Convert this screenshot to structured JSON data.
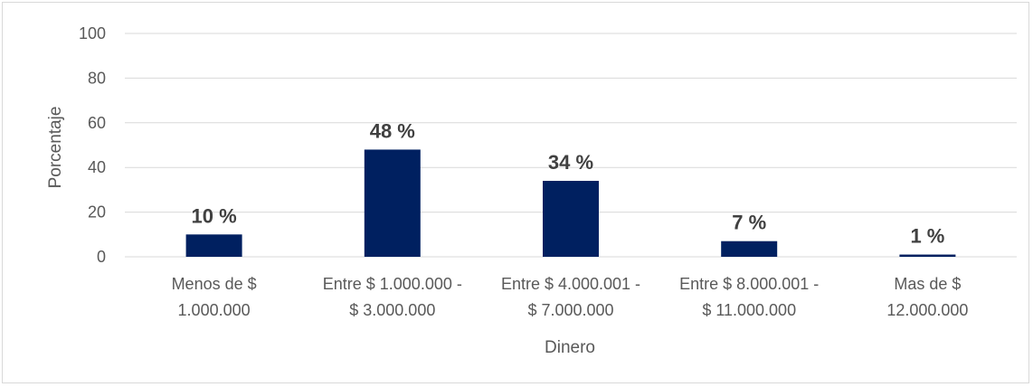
{
  "chart_data": {
    "type": "bar",
    "categories": [
      [
        "Menos de $",
        "1.000.000"
      ],
      [
        "Entre $ 1.000.000 -",
        "$ 3.000.000"
      ],
      [
        "Entre $ 4.000.001 -",
        "$ 7.000.000"
      ],
      [
        "Entre $ 8.000.001 -",
        "$ 11.000.000"
      ],
      [
        "Mas de $",
        "12.000.000"
      ]
    ],
    "values": [
      10,
      48,
      34,
      7,
      1
    ],
    "data_labels": [
      "10 %",
      "48 %",
      "34 %",
      "7 %",
      "1 %"
    ],
    "xlabel": "Dinero",
    "ylabel": "Porcentaje",
    "ylim": [
      0,
      100
    ],
    "yticks": [
      "0",
      "20",
      "40",
      "60",
      "80",
      "100"
    ],
    "grid": true,
    "bar_color": "#002060",
    "gridline_color": "#d9d9d9"
  }
}
